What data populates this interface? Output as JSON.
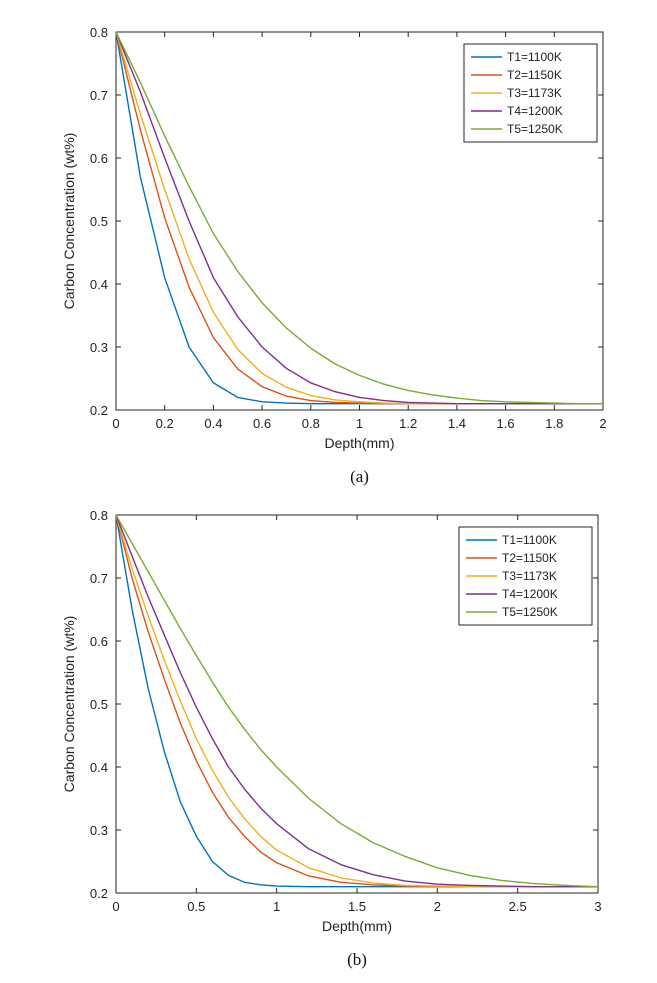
{
  "chart_data": [
    {
      "type": "line",
      "panel_label": "(a)",
      "xlabel": "Depth(mm)",
      "ylabel": "Carbon Concentration (wt%)",
      "xlim": [
        0,
        2
      ],
      "ylim": [
        0.2,
        0.8
      ],
      "x_ticks": [
        "0",
        "0.2",
        "0.4",
        "0.6",
        "0.8",
        "1",
        "1.2",
        "1.4",
        "1.6",
        "1.8",
        "2"
      ],
      "y_ticks": [
        "0.2",
        "0.3",
        "0.4",
        "0.5",
        "0.6",
        "0.7",
        "0.8"
      ],
      "grid": false,
      "legend_position": "top-right",
      "x": [
        0,
        0.1,
        0.2,
        0.3,
        0.4,
        0.5,
        0.6,
        0.7,
        0.8,
        0.9,
        1.0,
        1.1,
        1.2,
        1.3,
        1.4,
        1.5,
        1.6,
        1.7,
        1.8,
        1.9,
        2.0
      ],
      "series": [
        {
          "name": "T1=1100K",
          "color": "#0072BD",
          "values": [
            0.8,
            0.57,
            0.41,
            0.3,
            0.243,
            0.22,
            0.213,
            0.211,
            0.21,
            0.21,
            0.21,
            0.21,
            0.21,
            0.21,
            0.21,
            0.21,
            0.21,
            0.21,
            0.21,
            0.21,
            0.21
          ]
        },
        {
          "name": "T2=1150K",
          "color": "#D95319",
          "values": [
            0.8,
            0.645,
            0.505,
            0.395,
            0.315,
            0.265,
            0.237,
            0.222,
            0.215,
            0.212,
            0.211,
            0.21,
            0.21,
            0.21,
            0.21,
            0.21,
            0.21,
            0.21,
            0.21,
            0.21,
            0.21
          ]
        },
        {
          "name": "T3=1173K",
          "color": "#EDB120",
          "values": [
            0.8,
            0.67,
            0.55,
            0.44,
            0.355,
            0.296,
            0.258,
            0.236,
            0.223,
            0.216,
            0.213,
            0.211,
            0.21,
            0.21,
            0.21,
            0.21,
            0.21,
            0.21,
            0.21,
            0.21,
            0.21
          ]
        },
        {
          "name": "T4=1200K",
          "color": "#7E2F8E",
          "values": [
            0.8,
            0.705,
            0.6,
            0.5,
            0.41,
            0.348,
            0.3,
            0.266,
            0.243,
            0.229,
            0.22,
            0.215,
            0.212,
            0.211,
            0.21,
            0.21,
            0.21,
            0.21,
            0.21,
            0.21,
            0.21
          ]
        },
        {
          "name": "T5=1250K",
          "color": "#77AC30",
          "values": [
            0.8,
            0.72,
            0.635,
            0.555,
            0.48,
            0.42,
            0.37,
            0.33,
            0.298,
            0.273,
            0.255,
            0.241,
            0.231,
            0.224,
            0.219,
            0.215,
            0.213,
            0.212,
            0.211,
            0.21,
            0.21
          ]
        }
      ]
    },
    {
      "type": "line",
      "panel_label": "(b)",
      "xlabel": "Depth(mm)",
      "ylabel": "Carbon Concentration (wt%)",
      "xlim": [
        0,
        3
      ],
      "ylim": [
        0.2,
        0.8
      ],
      "x_ticks": [
        "0",
        "0.5",
        "1",
        "1.5",
        "2",
        "2.5",
        "3"
      ],
      "y_ticks": [
        "0.2",
        "0.3",
        "0.4",
        "0.5",
        "0.6",
        "0.7",
        "0.8"
      ],
      "grid": false,
      "legend_position": "top-right",
      "x": [
        0,
        0.1,
        0.2,
        0.3,
        0.4,
        0.5,
        0.6,
        0.7,
        0.8,
        0.9,
        1.0,
        1.2,
        1.4,
        1.6,
        1.8,
        2.0,
        2.2,
        2.4,
        2.6,
        2.8,
        3.0
      ],
      "series": [
        {
          "name": "T1=1100K",
          "color": "#0072BD",
          "values": [
            0.8,
            0.65,
            0.525,
            0.425,
            0.345,
            0.29,
            0.25,
            0.228,
            0.217,
            0.213,
            0.211,
            0.21,
            0.21,
            0.21,
            0.21,
            0.21,
            0.21,
            0.21,
            0.21,
            0.21,
            0.21
          ]
        },
        {
          "name": "T2=1150K",
          "color": "#D95319",
          "values": [
            0.8,
            0.7,
            0.615,
            0.54,
            0.47,
            0.41,
            0.36,
            0.32,
            0.29,
            0.265,
            0.248,
            0.227,
            0.217,
            0.213,
            0.211,
            0.21,
            0.21,
            0.21,
            0.21,
            0.21,
            0.21
          ]
        },
        {
          "name": "T3=1173K",
          "color": "#EDB120",
          "values": [
            0.8,
            0.715,
            0.64,
            0.57,
            0.505,
            0.445,
            0.395,
            0.352,
            0.318,
            0.29,
            0.268,
            0.24,
            0.224,
            0.216,
            0.212,
            0.211,
            0.21,
            0.21,
            0.21,
            0.21,
            0.21
          ]
        },
        {
          "name": "T4=1200K",
          "color": "#7E2F8E",
          "values": [
            0.8,
            0.735,
            0.67,
            0.61,
            0.55,
            0.495,
            0.445,
            0.4,
            0.365,
            0.335,
            0.31,
            0.27,
            0.245,
            0.229,
            0.219,
            0.214,
            0.212,
            0.211,
            0.21,
            0.21,
            0.21
          ]
        },
        {
          "name": "T5=1250K",
          "color": "#77AC30",
          "values": [
            0.8,
            0.755,
            0.71,
            0.665,
            0.62,
            0.577,
            0.535,
            0.495,
            0.46,
            0.428,
            0.4,
            0.35,
            0.31,
            0.28,
            0.258,
            0.24,
            0.228,
            0.22,
            0.215,
            0.212,
            0.21
          ]
        }
      ]
    }
  ]
}
